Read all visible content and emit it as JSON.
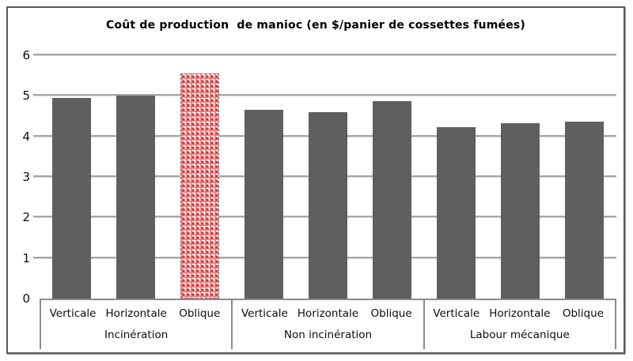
{
  "chart_data": {
    "type": "bar",
    "title": "Coût de production  de manioc (en $/panier de cossettes fumées)",
    "xlabel": "",
    "ylabel": "",
    "ylim": [
      0,
      6
    ],
    "yticks": [
      0,
      1,
      2,
      3,
      4,
      5,
      6
    ],
    "grid": true,
    "legend_position": "none",
    "bar_color": "#5f5f5f",
    "gridline_color": "#a6a6a6",
    "highlight": {
      "group_index": 0,
      "bar_index": 2,
      "style": "red-dotted-pattern",
      "pattern_colors": {
        "dot": "#c23b3b",
        "weave": "#ef7c7c",
        "background": "#ffffff"
      }
    },
    "groups": [
      {
        "label": "Incinération",
        "categories": [
          "Verticale",
          "Horizontale",
          "Oblique"
        ],
        "values": [
          4.95,
          5.0,
          5.55
        ]
      },
      {
        "label": "Non incinération",
        "categories": [
          "Verticale",
          "Horizontale",
          "Oblique"
        ],
        "values": [
          4.65,
          4.6,
          4.88
        ]
      },
      {
        "label": "Labour mécanique",
        "categories": [
          "Verticale",
          "Horizontale",
          "Oblique"
        ],
        "values": [
          4.23,
          4.33,
          4.36
        ]
      }
    ]
  },
  "colors": {
    "frame_border": "#595959",
    "axis_band_line": "#8c8c8c",
    "text": "#000000"
  }
}
